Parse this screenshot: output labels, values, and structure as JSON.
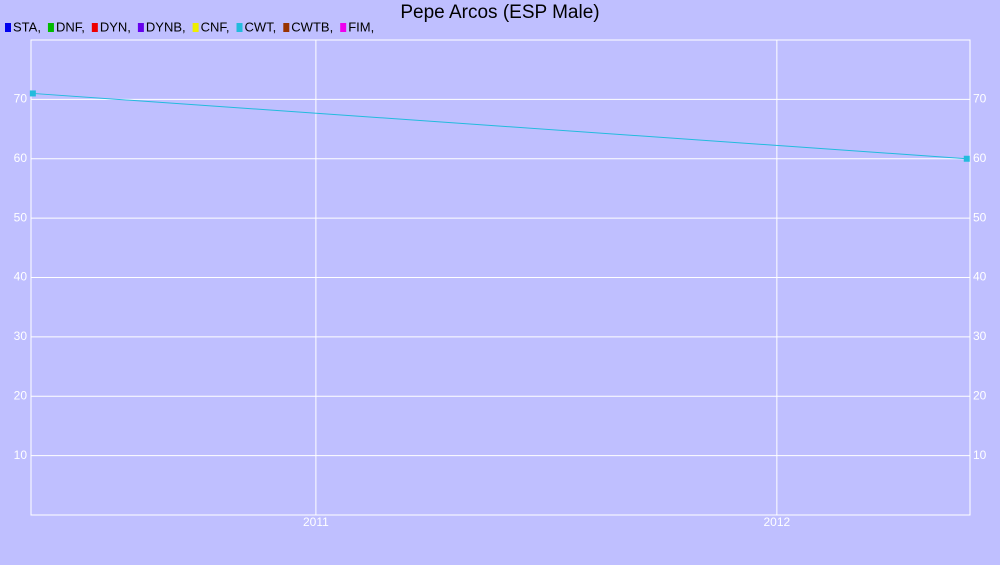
{
  "chart_data": {
    "type": "line",
    "title": "Pepe Arcos (ESP Male)",
    "x": [
      2010.386,
      2012.412
    ],
    "xlim": [
      2010.382,
      2012.419
    ],
    "xticks": [
      2011,
      2012
    ],
    "ylim": [
      0,
      80
    ],
    "yticks": [
      10,
      20,
      30,
      40,
      50,
      60,
      70
    ],
    "grid": true,
    "legend": "top-left",
    "series": [
      {
        "name": "STA,",
        "color": "#0000ee",
        "values": [
          null,
          null
        ]
      },
      {
        "name": "DNF,",
        "color": "#00bb00",
        "values": [
          null,
          null
        ]
      },
      {
        "name": "DYN,",
        "color": "#ee0000",
        "values": [
          null,
          null
        ]
      },
      {
        "name": "DYNB,",
        "color": "#6600ee",
        "values": [
          null,
          null
        ]
      },
      {
        "name": "CNF,",
        "color": "#eeee00",
        "values": [
          null,
          null
        ]
      },
      {
        "name": "CWT,",
        "color": "#22bbdd",
        "values": [
          71,
          60
        ]
      },
      {
        "name": "CWTB,",
        "color": "#993300",
        "values": [
          null,
          null
        ]
      },
      {
        "name": "FIM,",
        "color": "#ee00ee",
        "values": [
          null,
          null
        ]
      }
    ]
  }
}
